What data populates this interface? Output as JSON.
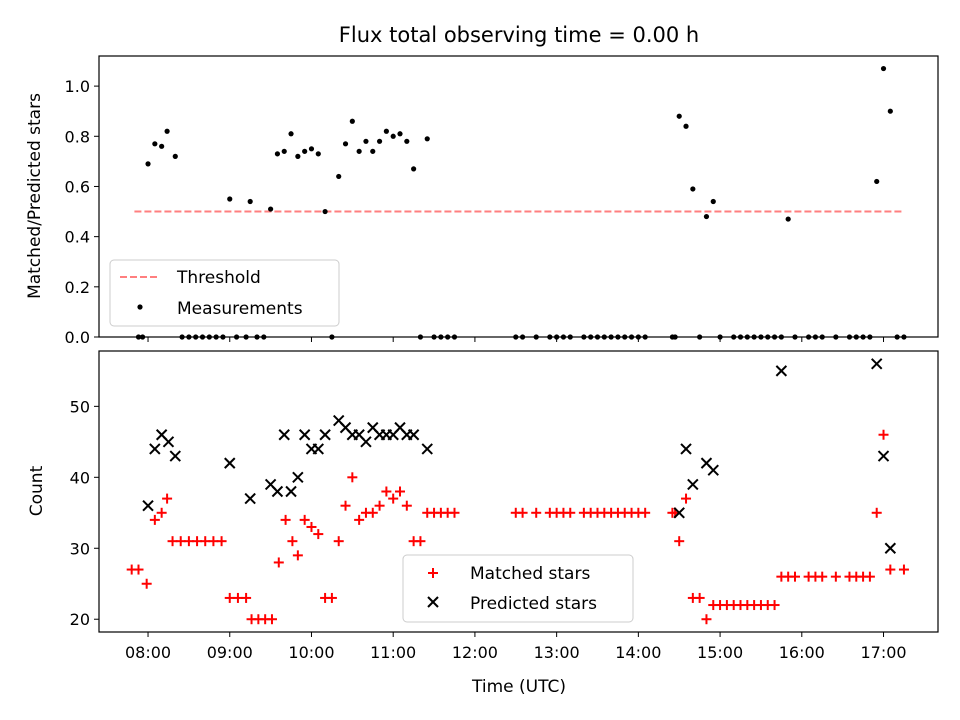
{
  "chart_data": [
    {
      "type": "scatter",
      "title": "Flux total observing time = 0.00 h",
      "xlabel": "",
      "ylabel": "Matched/Predicted stars",
      "xlim": [
        "07:24",
        "17:40"
      ],
      "ylim": [
        0,
        1.12
      ],
      "yticks": [
        "0.0",
        "0.2",
        "0.4",
        "0.6",
        "0.8",
        "1.0"
      ],
      "legend": {
        "placement": "lower-left",
        "entries": [
          "Threshold",
          "Measurements"
        ]
      },
      "series": [
        {
          "name": "Threshold",
          "kind": "dashed-line",
          "color": "#ff7f7f",
          "points": [
            [
              "07:50",
              0.5
            ],
            [
              "17:15",
              0.5
            ]
          ]
        },
        {
          "name": "Measurements",
          "kind": "dot",
          "color": "#000000",
          "points": [
            [
              "07:53",
              0
            ],
            [
              "07:56",
              0
            ],
            [
              "08:00",
              0.69
            ],
            [
              "08:05",
              0.77
            ],
            [
              "08:10",
              0.76
            ],
            [
              "08:14",
              0.82
            ],
            [
              "08:20",
              0.72
            ],
            [
              "08:25",
              0
            ],
            [
              "08:30",
              0
            ],
            [
              "08:35",
              0
            ],
            [
              "08:40",
              0
            ],
            [
              "08:45",
              0
            ],
            [
              "08:50",
              0
            ],
            [
              "08:55",
              0
            ],
            [
              "09:00",
              0.55
            ],
            [
              "09:05",
              0
            ],
            [
              "09:12",
              0
            ],
            [
              "09:15",
              0.54
            ],
            [
              "09:20",
              0
            ],
            [
              "09:25",
              0
            ],
            [
              "09:30",
              0.51
            ],
            [
              "09:35",
              0.73
            ],
            [
              "09:40",
              0.74
            ],
            [
              "09:45",
              0.81
            ],
            [
              "09:50",
              0.72
            ],
            [
              "09:55",
              0.74
            ],
            [
              "10:00",
              0.75
            ],
            [
              "10:05",
              0.73
            ],
            [
              "10:10",
              0.5
            ],
            [
              "10:15",
              0
            ],
            [
              "10:20",
              0.64
            ],
            [
              "10:25",
              0.77
            ],
            [
              "10:30",
              0.86
            ],
            [
              "10:35",
              0.74
            ],
            [
              "10:40",
              0.78
            ],
            [
              "10:45",
              0.74
            ],
            [
              "10:50",
              0.78
            ],
            [
              "10:55",
              0.82
            ],
            [
              "11:00",
              0.8
            ],
            [
              "11:05",
              0.81
            ],
            [
              "11:10",
              0.78
            ],
            [
              "11:15",
              0.67
            ],
            [
              "11:20",
              0
            ],
            [
              "11:25",
              0.79
            ],
            [
              "11:30",
              0
            ],
            [
              "11:35",
              0
            ],
            [
              "11:40",
              0
            ],
            [
              "11:45",
              0
            ],
            [
              "12:30",
              0
            ],
            [
              "12:35",
              0
            ],
            [
              "12:45",
              0
            ],
            [
              "12:55",
              0
            ],
            [
              "13:00",
              0
            ],
            [
              "13:05",
              0
            ],
            [
              "13:10",
              0
            ],
            [
              "13:20",
              0
            ],
            [
              "13:25",
              0
            ],
            [
              "13:30",
              0
            ],
            [
              "13:35",
              0
            ],
            [
              "13:40",
              0
            ],
            [
              "13:45",
              0
            ],
            [
              "13:50",
              0
            ],
            [
              "13:55",
              0
            ],
            [
              "14:00",
              0
            ],
            [
              "14:05",
              0
            ],
            [
              "14:25",
              0
            ],
            [
              "14:27",
              0
            ],
            [
              "14:30",
              0.88
            ],
            [
              "14:35",
              0.84
            ],
            [
              "14:40",
              0.59
            ],
            [
              "14:45",
              0
            ],
            [
              "14:50",
              0.48
            ],
            [
              "14:55",
              0.54
            ],
            [
              "15:00",
              0
            ],
            [
              "15:10",
              0
            ],
            [
              "15:15",
              0
            ],
            [
              "15:20",
              0
            ],
            [
              "15:25",
              0
            ],
            [
              "15:30",
              0
            ],
            [
              "15:35",
              0
            ],
            [
              "15:40",
              0
            ],
            [
              "15:45",
              0
            ],
            [
              "15:50",
              0.47
            ],
            [
              "15:55",
              0
            ],
            [
              "16:05",
              0
            ],
            [
              "16:10",
              0
            ],
            [
              "16:15",
              0
            ],
            [
              "16:25",
              0
            ],
            [
              "16:35",
              0
            ],
            [
              "16:40",
              0
            ],
            [
              "16:45",
              0
            ],
            [
              "16:50",
              0
            ],
            [
              "16:55",
              0.62
            ],
            [
              "17:00",
              1.07
            ],
            [
              "17:05",
              0.9
            ],
            [
              "17:10",
              0
            ],
            [
              "17:15",
              0
            ]
          ]
        }
      ]
    },
    {
      "type": "scatter",
      "title": "",
      "xlabel": "Time (UTC)",
      "ylabel": "Count",
      "xlim": [
        "07:24",
        "17:40"
      ],
      "ylim": [
        18.2,
        57.8
      ],
      "yticks": [
        "20",
        "30",
        "40",
        "50"
      ],
      "xticks": [
        "08:00",
        "09:00",
        "10:00",
        "11:00",
        "12:00",
        "13:00",
        "14:00",
        "15:00",
        "16:00",
        "17:00"
      ],
      "legend": {
        "placement": "lower-center",
        "entries": [
          "Matched stars",
          "Predicted stars"
        ]
      },
      "series": [
        {
          "name": "Matched stars",
          "marker": "+",
          "color": "#ff0000",
          "points": [
            [
              "07:48",
              27
            ],
            [
              "07:53",
              27
            ],
            [
              "07:59",
              25
            ],
            [
              "08:05",
              34
            ],
            [
              "08:10",
              35
            ],
            [
              "08:14",
              37
            ],
            [
              "08:18",
              31
            ],
            [
              "08:24",
              31
            ],
            [
              "08:30",
              31
            ],
            [
              "08:36",
              31
            ],
            [
              "08:42",
              31
            ],
            [
              "08:48",
              31
            ],
            [
              "08:54",
              31
            ],
            [
              "09:00",
              23
            ],
            [
              "09:06",
              23
            ],
            [
              "09:12",
              23
            ],
            [
              "09:16",
              20
            ],
            [
              "09:21",
              20
            ],
            [
              "09:26",
              20
            ],
            [
              "09:31",
              20
            ],
            [
              "09:36",
              28
            ],
            [
              "09:41",
              34
            ],
            [
              "09:46",
              31
            ],
            [
              "09:50",
              29
            ],
            [
              "09:55",
              34
            ],
            [
              "10:00",
              33
            ],
            [
              "10:05",
              32
            ],
            [
              "10:10",
              23
            ],
            [
              "10:15",
              23
            ],
            [
              "10:20",
              31
            ],
            [
              "10:25",
              36
            ],
            [
              "10:30",
              40
            ],
            [
              "10:35",
              34
            ],
            [
              "10:40",
              35
            ],
            [
              "10:45",
              35
            ],
            [
              "10:50",
              36
            ],
            [
              "10:55",
              38
            ],
            [
              "11:00",
              37
            ],
            [
              "11:05",
              38
            ],
            [
              "11:10",
              36
            ],
            [
              "11:15",
              31
            ],
            [
              "11:20",
              31
            ],
            [
              "11:25",
              35
            ],
            [
              "11:30",
              35
            ],
            [
              "11:35",
              35
            ],
            [
              "11:40",
              35
            ],
            [
              "11:45",
              35
            ],
            [
              "12:30",
              35
            ],
            [
              "12:35",
              35
            ],
            [
              "12:45",
              35
            ],
            [
              "12:55",
              35
            ],
            [
              "13:00",
              35
            ],
            [
              "13:05",
              35
            ],
            [
              "13:10",
              35
            ],
            [
              "13:20",
              35
            ],
            [
              "13:25",
              35
            ],
            [
              "13:30",
              35
            ],
            [
              "13:35",
              35
            ],
            [
              "13:40",
              35
            ],
            [
              "13:45",
              35
            ],
            [
              "13:50",
              35
            ],
            [
              "13:55",
              35
            ],
            [
              "14:00",
              35
            ],
            [
              "14:05",
              35
            ],
            [
              "14:25",
              35
            ],
            [
              "14:27",
              35
            ],
            [
              "14:30",
              31
            ],
            [
              "14:35",
              37
            ],
            [
              "14:40",
              23
            ],
            [
              "14:45",
              23
            ],
            [
              "14:50",
              20
            ],
            [
              "14:55",
              22
            ],
            [
              "15:00",
              22
            ],
            [
              "15:05",
              22
            ],
            [
              "15:10",
              22
            ],
            [
              "15:15",
              22
            ],
            [
              "15:20",
              22
            ],
            [
              "15:25",
              22
            ],
            [
              "15:30",
              22
            ],
            [
              "15:35",
              22
            ],
            [
              "15:40",
              22
            ],
            [
              "15:45",
              26
            ],
            [
              "15:50",
              26
            ],
            [
              "15:55",
              26
            ],
            [
              "16:05",
              26
            ],
            [
              "16:10",
              26
            ],
            [
              "16:15",
              26
            ],
            [
              "16:25",
              26
            ],
            [
              "16:35",
              26
            ],
            [
              "16:40",
              26
            ],
            [
              "16:45",
              26
            ],
            [
              "16:50",
              26
            ],
            [
              "16:55",
              35
            ],
            [
              "17:00",
              46
            ],
            [
              "17:05",
              27
            ],
            [
              "17:15",
              27
            ]
          ]
        },
        {
          "name": "Predicted stars",
          "marker": "x",
          "color": "#000000",
          "points": [
            [
              "08:00",
              36
            ],
            [
              "08:05",
              44
            ],
            [
              "08:10",
              46
            ],
            [
              "08:15",
              45
            ],
            [
              "08:20",
              43
            ],
            [
              "09:00",
              42
            ],
            [
              "09:15",
              37
            ],
            [
              "09:30",
              39
            ],
            [
              "09:35",
              38
            ],
            [
              "09:40",
              46
            ],
            [
              "09:45",
              38
            ],
            [
              "09:50",
              40
            ],
            [
              "09:55",
              46
            ],
            [
              "10:00",
              44
            ],
            [
              "10:05",
              44
            ],
            [
              "10:10",
              46
            ],
            [
              "10:20",
              48
            ],
            [
              "10:25",
              47
            ],
            [
              "10:30",
              46
            ],
            [
              "10:35",
              46
            ],
            [
              "10:40",
              45
            ],
            [
              "10:45",
              47
            ],
            [
              "10:50",
              46
            ],
            [
              "10:55",
              46
            ],
            [
              "11:00",
              46
            ],
            [
              "11:05",
              47
            ],
            [
              "11:10",
              46
            ],
            [
              "11:15",
              46
            ],
            [
              "11:25",
              44
            ],
            [
              "14:30",
              35
            ],
            [
              "14:35",
              44
            ],
            [
              "14:40",
              39
            ],
            [
              "14:50",
              42
            ],
            [
              "14:55",
              41
            ],
            [
              "15:45",
              55
            ],
            [
              "16:55",
              56
            ],
            [
              "17:00",
              43
            ],
            [
              "17:05",
              30
            ]
          ]
        }
      ]
    }
  ]
}
